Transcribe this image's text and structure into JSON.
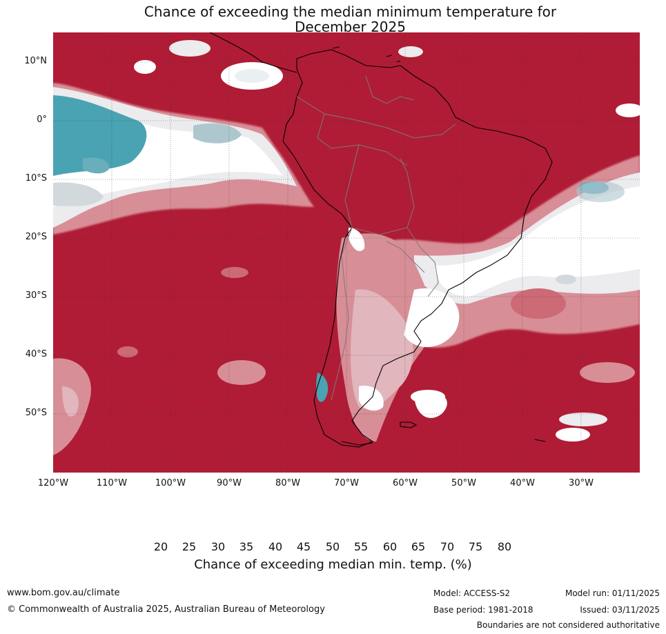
{
  "title": {
    "line1": "Chance of exceeding the median minimum temperature for",
    "line2": "December 2025"
  },
  "map": {
    "latitude_labels": [
      "10°N",
      "0°",
      "10°S",
      "20°S",
      "30°S",
      "40°S",
      "50°S"
    ],
    "longitude_labels": [
      "120°W",
      "110°W",
      "100°W",
      "90°W",
      "80°W",
      "70°W",
      "60°W",
      "50°W",
      "40°W",
      "30°W"
    ],
    "lon_range": [
      -120,
      -20
    ],
    "lat_range": [
      -60,
      15
    ],
    "dominant_color": "#b01c35"
  },
  "colorbar": {
    "title": "Chance of exceeding median min. temp. (%)",
    "ticks": [
      "20",
      "25",
      "30",
      "35",
      "40",
      "45",
      "50",
      "55",
      "60",
      "65",
      "70",
      "75",
      "80"
    ],
    "colors": [
      "#4aa3b3",
      "#6aadbb",
      "#8bb9c6",
      "#aec7cf",
      "#d2d9dc",
      "#eaf0f2",
      "#ffffff",
      "#ffffff",
      "#ecebed",
      "#e1b6bd",
      "#d88e97",
      "#cc6a76",
      "#c04856",
      "#b01c35"
    ]
  },
  "footer": {
    "website": "www.bom.gov.au/climate",
    "copyright": "© Commonwealth of Australia 2025, Australian Bureau of Meteorology",
    "model": "Model: ACCESS-S2",
    "base_period": "Base period: 1981-2018",
    "model_run": "Model run: 01/11/2025",
    "issued": "Issued: 03/11/2025",
    "disclaimer": "Boundaries are not considered authoritative"
  }
}
